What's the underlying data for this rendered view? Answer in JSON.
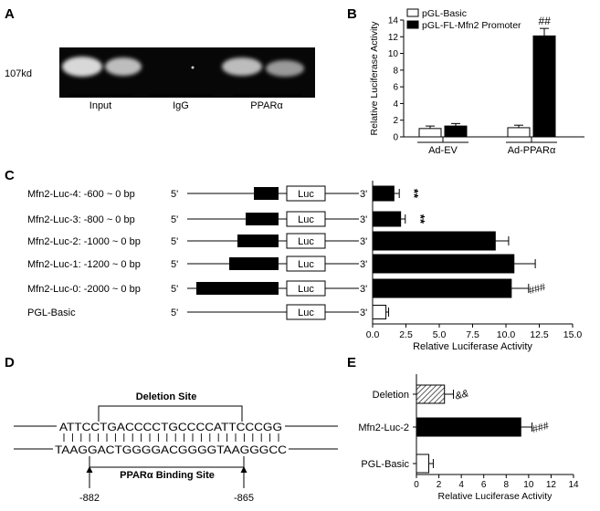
{
  "panel_labels": {
    "a": "A",
    "b": "B",
    "c": "C",
    "d": "D",
    "e": "E"
  },
  "panel_a": {
    "band_size_label": "107kd",
    "lanes": [
      "Input",
      "IgG",
      "PPARα"
    ]
  },
  "chart_data": [
    {
      "panel": "B",
      "type": "bar",
      "orientation": "vertical",
      "ylabel": "Relative Luciferase Activity",
      "xlabel": "",
      "ylim": [
        0,
        14
      ],
      "yticks": [
        0,
        2,
        4,
        6,
        8,
        10,
        12,
        14
      ],
      "categories": [
        "Ad-EV",
        "Ad-PPARα"
      ],
      "series": [
        {
          "name": "pGL-Basic",
          "fill": "#ffffff",
          "values": [
            1.0,
            1.1
          ],
          "errors": [
            0.3,
            0.3
          ]
        },
        {
          "name": "pGL-FL-Mfn2 Promoter",
          "fill": "#000000",
          "values": [
            1.3,
            12.1
          ],
          "errors": [
            0.3,
            0.9
          ]
        }
      ],
      "annotations": [
        {
          "category": "Ad-PPARα",
          "series": "pGL-FL-Mfn2 Promoter",
          "text": "##"
        }
      ],
      "legend": "top-left"
    },
    {
      "panel": "C",
      "type": "bar",
      "orientation": "horizontal",
      "xlabel": "Relative Luciferase Activity",
      "xlim": [
        0,
        15
      ],
      "xticks": [
        0.0,
        2.5,
        5.0,
        7.5,
        10.0,
        12.5,
        15.0
      ],
      "xtick_labels": [
        "0.0",
        "2.5",
        "5.0",
        "7.5",
        "10.0",
        "12.5",
        "15.0"
      ],
      "categories": [
        "Mfn2-Luc-4: -600 ~ 0 bp",
        "Mfn2-Luc-3: -800 ~ 0 bp",
        "Mfn2-Luc-2: -1000 ~ 0 bp",
        "Mfn2-Luc-1: -1200 ~ 0 bp",
        "Mfn2-Luc-0: -2000 ~ 0 bp",
        "PGL-Basic"
      ],
      "values": [
        1.6,
        2.1,
        9.2,
        10.6,
        10.4,
        1.0
      ],
      "errors": [
        0.4,
        0.35,
        1.0,
        1.6,
        1.3,
        0.2
      ],
      "fills": [
        "#000000",
        "#000000",
        "#000000",
        "#000000",
        "#000000",
        "#ffffff"
      ],
      "annotations": [
        "**",
        "**",
        "",
        "",
        "###",
        ""
      ]
    },
    {
      "panel": "E",
      "type": "bar",
      "orientation": "horizontal",
      "xlabel": "Relative Luciferase Activity",
      "xlim": [
        0,
        14
      ],
      "xticks": [
        0,
        2,
        4,
        6,
        8,
        10,
        12,
        14
      ],
      "categories": [
        "Deletion",
        "Mfn2-Luc-2",
        "PGL-Basic"
      ],
      "values": [
        2.5,
        9.3,
        1.1
      ],
      "errors": [
        0.8,
        1.0,
        0.4
      ],
      "fills": [
        "hatched",
        "#000000",
        "#ffffff"
      ],
      "annotations": [
        "&&",
        "###",
        ""
      ]
    }
  ],
  "constructs": {
    "five_prime": "5'",
    "three_prime": "3'",
    "luc_label": "Luc",
    "promoter_fraction": [
      0.3,
      0.4,
      0.5,
      0.6,
      1.0,
      0.0
    ]
  },
  "panel_d": {
    "deletion_label": "Deletion Site",
    "top_strand": "ATTCCTGACCCCTGCCCCATTCCCGG",
    "bottom_strand": "TAAGGACTGGGGACGGGGTAAGGGCC",
    "binding_label": "PPARα Binding Site",
    "pos_start": "-882",
    "pos_end": "-865"
  }
}
